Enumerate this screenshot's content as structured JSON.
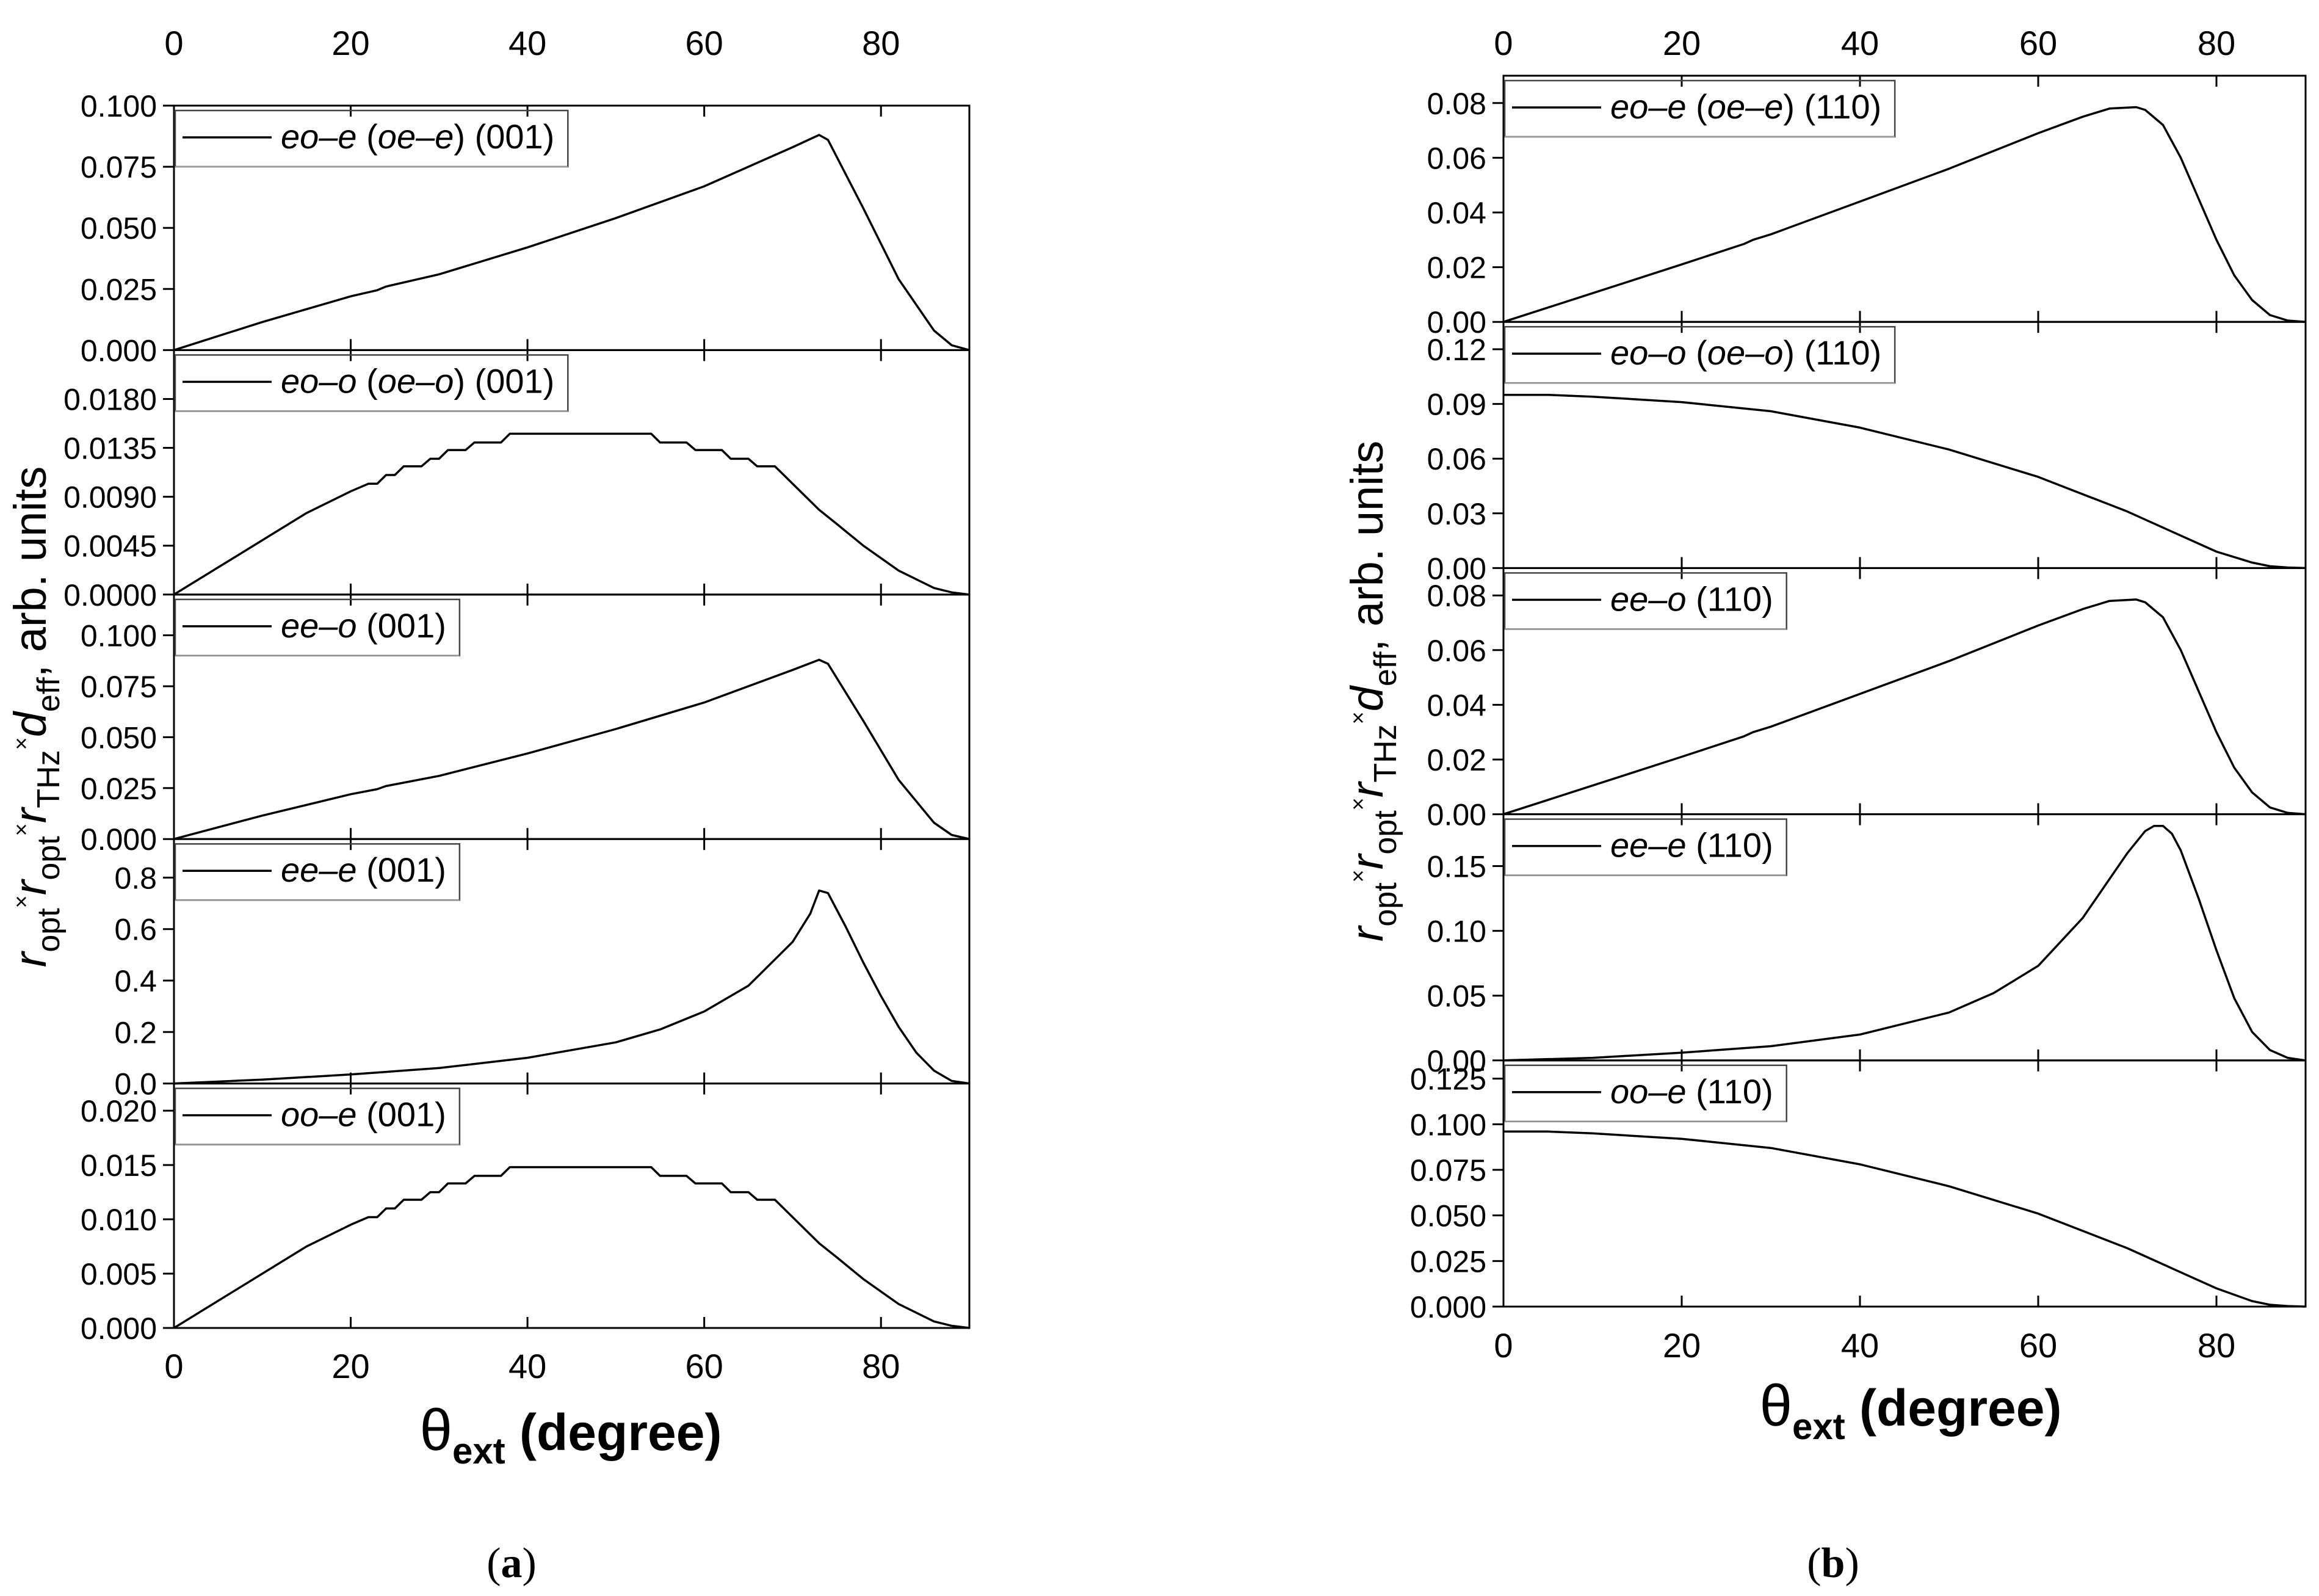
{
  "figure": {
    "x_axis_title": {
      "symbol": "θ",
      "subscript": "ext",
      "unit": "(degree)"
    },
    "y_axis_title": {
      "r1": "r",
      "r1_sub": "opt",
      "times1": "×",
      "r2": "r",
      "r2_sub": "opt",
      "times2": "×",
      "r3": "r",
      "r3_sub": "THz",
      "times3": "×",
      "d": "d",
      "d_sub": "eff",
      "tail": ", arb. units"
    },
    "x_ticks": [
      "0",
      "20",
      "40",
      "60",
      "80"
    ]
  },
  "chart_data": [
    {
      "type": "line",
      "panel_label": "(a)",
      "panel_label_parts": [
        "(",
        "a",
        ")"
      ],
      "xlabel": "θext (degree)",
      "ylabel": "r_opt × r_opt × r_THz × d_eff, arb. units",
      "xlim": [
        0,
        90
      ],
      "x_ticks": [
        0,
        20,
        40,
        60,
        80
      ],
      "subplots": [
        {
          "legend": {
            "italic": "eo–e",
            "paren_open": " (",
            "italic2": "oe–e",
            "paren_close": ")",
            "plane": " (001)"
          },
          "ylim": [
            0,
            0.1
          ],
          "y_ticks": [
            "0.000",
            "0.025",
            "0.050",
            "0.075",
            "0.100"
          ],
          "series": [
            {
              "name": "eo–e (oe–e) (001)",
              "x": [
                0,
                10,
                20,
                23,
                24,
                30,
                40,
                50,
                60,
                70,
                73,
                74,
                78,
                82,
                86,
                88,
                90
              ],
              "y": [
                0,
                0.0115,
                0.022,
                0.0245,
                0.026,
                0.031,
                0.042,
                0.054,
                0.067,
                0.083,
                0.088,
                0.086,
                0.058,
                0.029,
                0.008,
                0.002,
                0
              ]
            }
          ]
        },
        {
          "legend": {
            "italic": "eo–o",
            "paren_open": " (",
            "italic2": "oe–o",
            "paren_close": ")",
            "plane": " (001)"
          },
          "ylim": [
            0,
            0.0225
          ],
          "y_ticks": [
            "0.0000",
            "0.0045",
            "0.0090",
            "0.0135",
            "0.0180"
          ],
          "series": [
            {
              "name": "eo–o (oe–o) (001)",
              "x": [
                0,
                5,
                10,
                15,
                20,
                22,
                23,
                24,
                25,
                26,
                28,
                29,
                30,
                31,
                33,
                34,
                37,
                38,
                54,
                55,
                58,
                59,
                62,
                63,
                65,
                66,
                68,
                69,
                73,
                75,
                78,
                82,
                86,
                88,
                90
              ],
              "y": [
                0,
                0.0025,
                0.005,
                0.0075,
                0.0095,
                0.0102,
                0.0102,
                0.011,
                0.011,
                0.0118,
                0.0118,
                0.0125,
                0.0125,
                0.0133,
                0.0133,
                0.014,
                0.014,
                0.0148,
                0.0148,
                0.014,
                0.014,
                0.0133,
                0.0133,
                0.0125,
                0.0125,
                0.0118,
                0.0118,
                0.011,
                0.0078,
                0.0065,
                0.0045,
                0.0022,
                0.0006,
                0.0002,
                0
              ]
            }
          ]
        },
        {
          "legend": {
            "italic": "ee–o",
            "paren_open": "",
            "italic2": "",
            "paren_close": "",
            "plane": " (001)"
          },
          "ylim": [
            0,
            0.12
          ],
          "y_ticks": [
            "0.000",
            "0.025",
            "0.050",
            "0.075",
            "0.100"
          ],
          "series": [
            {
              "name": "ee–o (001)",
              "x": [
                0,
                10,
                20,
                23,
                24,
                30,
                40,
                50,
                60,
                70,
                73,
                74,
                78,
                82,
                86,
                88,
                90
              ],
              "y": [
                0,
                0.0115,
                0.022,
                0.0245,
                0.026,
                0.031,
                0.042,
                0.054,
                0.067,
                0.083,
                0.088,
                0.086,
                0.058,
                0.029,
                0.008,
                0.002,
                0
              ]
            }
          ]
        },
        {
          "legend": {
            "italic": "ee–e",
            "paren_open": "",
            "italic2": "",
            "paren_close": "",
            "plane": " (001)"
          },
          "ylim": [
            0,
            0.95
          ],
          "y_ticks": [
            "0.0",
            "0.2",
            "0.4",
            "0.6",
            "0.8"
          ],
          "series": [
            {
              "name": "ee–e (001)",
              "x": [
                0,
                10,
                20,
                30,
                40,
                50,
                55,
                60,
                65,
                70,
                72,
                73,
                74,
                76,
                78,
                80,
                82,
                84,
                86,
                88,
                90
              ],
              "y": [
                0,
                0.015,
                0.035,
                0.06,
                0.1,
                0.16,
                0.21,
                0.28,
                0.38,
                0.55,
                0.66,
                0.75,
                0.74,
                0.61,
                0.47,
                0.34,
                0.22,
                0.12,
                0.05,
                0.01,
                0
              ]
            }
          ]
        },
        {
          "legend": {
            "italic": "oo–e",
            "paren_open": "",
            "italic2": "",
            "paren_close": "",
            "plane": " (001)"
          },
          "ylim": [
            0,
            0.0225
          ],
          "y_ticks": [
            "0.000",
            "0.005",
            "0.010",
            "0.015",
            "0.020"
          ],
          "series": [
            {
              "name": "oo–e (001)",
              "x": [
                0,
                5,
                10,
                15,
                20,
                22,
                23,
                24,
                25,
                26,
                28,
                29,
                30,
                31,
                33,
                34,
                37,
                38,
                54,
                55,
                58,
                59,
                62,
                63,
                65,
                66,
                68,
                69,
                73,
                75,
                78,
                82,
                86,
                88,
                90
              ],
              "y": [
                0,
                0.0025,
                0.005,
                0.0075,
                0.0095,
                0.0102,
                0.0102,
                0.011,
                0.011,
                0.0118,
                0.0118,
                0.0125,
                0.0125,
                0.0133,
                0.0133,
                0.014,
                0.014,
                0.0148,
                0.0148,
                0.014,
                0.014,
                0.0133,
                0.0133,
                0.0125,
                0.0125,
                0.0118,
                0.0118,
                0.011,
                0.0078,
                0.0065,
                0.0045,
                0.0022,
                0.0006,
                0.0002,
                0
              ]
            }
          ]
        }
      ]
    },
    {
      "type": "line",
      "panel_label": "(b)",
      "panel_label_parts": [
        "(",
        "b",
        ")"
      ],
      "xlabel": "θext (degree)",
      "ylabel": "r_opt × r_opt × r_THz × d_eff, arb. units",
      "xlim": [
        0,
        90
      ],
      "x_ticks": [
        0,
        20,
        40,
        60,
        80
      ],
      "subplots": [
        {
          "legend": {
            "italic": "eo–e",
            "paren_open": " (",
            "italic2": "oe–e",
            "paren_close": ")",
            "plane": " (110)"
          },
          "ylim": [
            0,
            0.09
          ],
          "y_ticks": [
            "0.00",
            "0.02",
            "0.04",
            "0.06",
            "0.08"
          ],
          "series": [
            {
              "name": "eo–e (oe–e) (110)",
              "x": [
                0,
                10,
                20,
                27,
                28,
                30,
                40,
                50,
                60,
                65,
                68,
                71,
                72,
                74,
                76,
                78,
                80,
                82,
                84,
                86,
                88,
                90
              ],
              "y": [
                0,
                0.0105,
                0.021,
                0.0285,
                0.03,
                0.032,
                0.044,
                0.056,
                0.069,
                0.075,
                0.078,
                0.0785,
                0.0775,
                0.072,
                0.06,
                0.045,
                0.03,
                0.017,
                0.008,
                0.0025,
                0.0005,
                0
              ]
            }
          ]
        },
        {
          "legend": {
            "italic": "eo–o",
            "paren_open": " (",
            "italic2": "oe–o",
            "paren_close": ")",
            "plane": " (110)"
          },
          "ylim": [
            0,
            0.135
          ],
          "y_ticks": [
            "0.00",
            "0.03",
            "0.06",
            "0.09",
            "0.12"
          ],
          "series": [
            {
              "name": "eo–o (oe–o) (110)",
              "x": [
                0,
                5,
                10,
                20,
                30,
                40,
                50,
                60,
                70,
                75,
                80,
                84,
                86,
                88,
                90
              ],
              "y": [
                0.095,
                0.095,
                0.094,
                0.091,
                0.086,
                0.077,
                0.065,
                0.05,
                0.031,
                0.02,
                0.009,
                0.003,
                0.001,
                0.0003,
                0
              ]
            }
          ]
        },
        {
          "legend": {
            "italic": "ee–o",
            "paren_open": "",
            "italic2": "",
            "paren_close": "",
            "plane": " (110)"
          },
          "ylim": [
            0,
            0.09
          ],
          "y_ticks": [
            "0.00",
            "0.02",
            "0.04",
            "0.06",
            "0.08"
          ],
          "series": [
            {
              "name": "ee–o (110)",
              "x": [
                0,
                10,
                20,
                27,
                28,
                30,
                40,
                50,
                60,
                65,
                68,
                71,
                72,
                74,
                76,
                78,
                80,
                82,
                84,
                86,
                88,
                90
              ],
              "y": [
                0,
                0.0105,
                0.021,
                0.0285,
                0.03,
                0.032,
                0.044,
                0.056,
                0.069,
                0.075,
                0.078,
                0.0785,
                0.0775,
                0.072,
                0.06,
                0.045,
                0.03,
                0.017,
                0.008,
                0.0025,
                0.0005,
                0
              ]
            }
          ]
        },
        {
          "legend": {
            "italic": "ee–e",
            "paren_open": "",
            "italic2": "",
            "paren_close": "",
            "plane": " (110)"
          },
          "ylim": [
            0,
            0.19
          ],
          "y_ticks": [
            "0.00",
            "0.05",
            "0.10",
            "0.15"
          ],
          "series": [
            {
              "name": "ee–e (110)",
              "x": [
                0,
                10,
                20,
                30,
                40,
                50,
                55,
                60,
                65,
                68,
                70,
                72,
                73,
                74,
                75,
                76,
                78,
                80,
                82,
                84,
                86,
                88,
                90
              ],
              "y": [
                0,
                0.002,
                0.006,
                0.011,
                0.02,
                0.037,
                0.052,
                0.073,
                0.11,
                0.14,
                0.16,
                0.177,
                0.181,
                0.181,
                0.175,
                0.162,
                0.125,
                0.085,
                0.048,
                0.022,
                0.008,
                0.002,
                0
              ]
            }
          ]
        },
        {
          "legend": {
            "italic": "oo–e",
            "paren_open": "",
            "italic2": "",
            "paren_close": "",
            "plane": " (110)"
          },
          "ylim": [
            0,
            0.135
          ],
          "y_ticks": [
            "0.000",
            "0.025",
            "0.050",
            "0.075",
            "0.100",
            "0.125"
          ],
          "series": [
            {
              "name": "oo–e (110)",
              "x": [
                0,
                5,
                10,
                20,
                30,
                40,
                50,
                60,
                70,
                75,
                80,
                84,
                86,
                88,
                90
              ],
              "y": [
                0.096,
                0.096,
                0.095,
                0.092,
                0.087,
                0.078,
                0.066,
                0.051,
                0.032,
                0.021,
                0.01,
                0.003,
                0.001,
                0.0003,
                0
              ]
            }
          ]
        }
      ]
    }
  ]
}
